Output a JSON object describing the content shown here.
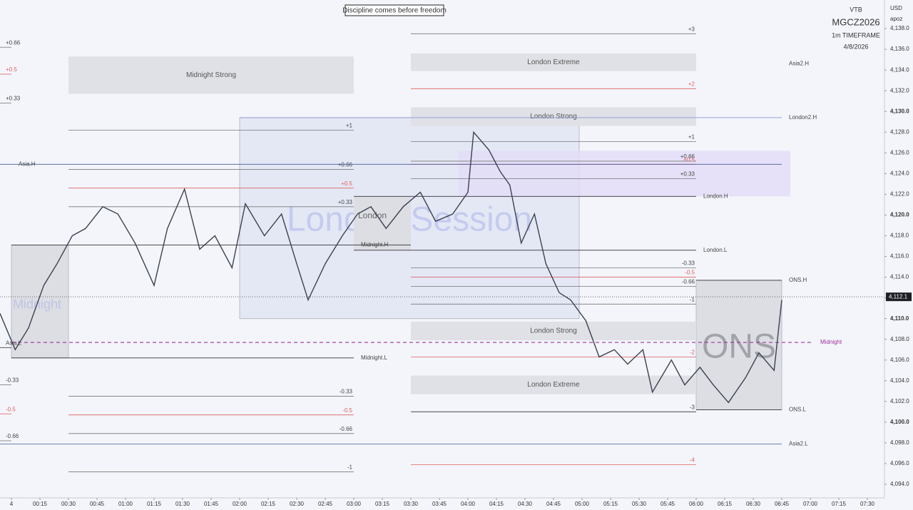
{
  "chart_data": {
    "type": "line",
    "title": "Discipline comes before freedom",
    "broker": "VTB",
    "symbol": "MGCZ2026",
    "timeframe": "1m TIMEFRAME",
    "date": "4/8/2026",
    "currency": "USD",
    "user": "apoz",
    "color": "#3b4150",
    "x": [
      -6,
      2,
      9,
      17,
      24,
      32,
      39,
      48,
      56,
      65,
      75,
      82,
      91,
      99,
      107,
      116,
      123,
      133,
      142,
      150,
      156,
      165,
      174,
      182,
      189,
      197,
      206,
      215,
      223,
      232,
      240,
      243,
      251,
      257,
      262,
      268,
      275,
      281,
      288,
      294,
      302,
      309,
      317,
      324,
      332,
      337,
      347,
      354,
      362,
      369,
      377,
      386,
      393,
      401,
      405
    ],
    "values": [
      4110.5,
      4107.0,
      4109.1,
      4113.2,
      4115.3,
      4118.0,
      4118.7,
      4120.8,
      4120.1,
      4117.3,
      4113.2,
      4118.7,
      4122.5,
      4116.7,
      4118.0,
      4114.9,
      4121.1,
      4118.0,
      4120.1,
      4115.3,
      4111.8,
      4115.3,
      4118.0,
      4120.1,
      4120.8,
      4118.7,
      4120.8,
      4122.2,
      4119.4,
      4120.1,
      4122.2,
      4128.0,
      4126.3,
      4124.2,
      4122.9,
      4117.3,
      4120.1,
      4115.3,
      4112.5,
      4111.8,
      4109.8,
      4106.3,
      4107.0,
      4105.6,
      4107.0,
      4102.9,
      4106.0,
      4103.6,
      4105.3,
      4103.6,
      4101.9,
      4104.3,
      4106.7,
      4105.0,
      4111.8
    ],
    "xlim": [
      -6,
      459
    ],
    "ylim": [
      4092.69,
      4140.76
    ],
    "xticks": [
      {
        "value": 0,
        "label": "4"
      },
      {
        "value": 15,
        "label": "00:15"
      },
      {
        "value": 30,
        "label": "00:30"
      },
      {
        "value": 45,
        "label": "00:45"
      },
      {
        "value": 60,
        "label": "01:00"
      },
      {
        "value": 75,
        "label": "01:15"
      },
      {
        "value": 90,
        "label": "01:30"
      },
      {
        "value": 105,
        "label": "01:45"
      },
      {
        "value": 120,
        "label": "02:00"
      },
      {
        "value": 135,
        "label": "02:15"
      },
      {
        "value": 150,
        "label": "02:30"
      },
      {
        "value": 165,
        "label": "02:45"
      },
      {
        "value": 180,
        "label": "03:00"
      },
      {
        "value": 195,
        "label": "03:15"
      },
      {
        "value": 210,
        "label": "03:30"
      },
      {
        "value": 225,
        "label": "03:45"
      },
      {
        "value": 240,
        "label": "04:00"
      },
      {
        "value": 255,
        "label": "04:15"
      },
      {
        "value": 270,
        "label": "04:30"
      },
      {
        "value": 285,
        "label": "04:45"
      },
      {
        "value": 300,
        "label": "05:00"
      },
      {
        "value": 315,
        "label": "05:15"
      },
      {
        "value": 330,
        "label": "05:30"
      },
      {
        "value": 345,
        "label": "05:45"
      },
      {
        "value": 360,
        "label": "06:00"
      },
      {
        "value": 375,
        "label": "06:15"
      },
      {
        "value": 390,
        "label": "06:30"
      },
      {
        "value": 405,
        "label": "06:45"
      },
      {
        "value": 420,
        "label": "07:00"
      },
      {
        "value": 435,
        "label": "07:15"
      },
      {
        "value": 450,
        "label": "07:30"
      }
    ],
    "yticks": [
      {
        "value": 4094,
        "label": "4,094.0"
      },
      {
        "value": 4096,
        "label": "4,096.0"
      },
      {
        "value": 4098,
        "label": "4,098.0"
      },
      {
        "value": 4100,
        "label": "4,100.0"
      },
      {
        "value": 4102,
        "label": "4,102.0"
      },
      {
        "value": 4104,
        "label": "4,104.0"
      },
      {
        "value": 4106,
        "label": "4,106.0"
      },
      {
        "value": 4108,
        "label": "4,108.0"
      },
      {
        "value": 4110,
        "label": "4,110.0"
      },
      {
        "value": 4112,
        "label": "4,112.0"
      },
      {
        "value": 4114,
        "label": "4,114.0"
      },
      {
        "value": 4116,
        "label": "4,116.0"
      },
      {
        "value": 4118,
        "label": "4,118.0"
      },
      {
        "value": 4120,
        "label": "4,120.0"
      },
      {
        "value": 4122,
        "label": "4,122.0"
      },
      {
        "value": 4124,
        "label": "4,124.0"
      },
      {
        "value": 4126,
        "label": "4,126.0"
      },
      {
        "value": 4128,
        "label": "4,128.0"
      },
      {
        "value": 4130,
        "label": "4,130.0"
      },
      {
        "value": 4132,
        "label": "4,132.0"
      },
      {
        "value": 4134,
        "label": "4,134.0"
      },
      {
        "value": 4136,
        "label": "4,136.0"
      },
      {
        "value": 4138,
        "label": "4,138.0"
      }
    ],
    "current_price": {
      "value": 4112.1,
      "label": "4,112.1"
    },
    "zones": [
      {
        "label": "London Session",
        "y": [
          4110.0,
          4129.4
        ],
        "x": [
          120,
          298.5
        ],
        "fill": "#e4e8f5",
        "style": "watermark"
      },
      {
        "label": "Midnight",
        "y": [
          4106.2,
          4117.1
        ],
        "x": [
          0,
          30
        ],
        "fill": "#dcdee4",
        "style": "watermark"
      },
      {
        "label": "ONS",
        "y": [
          4101.2,
          4113.7
        ],
        "x": [
          360,
          405
        ],
        "fill": "#dcdee4",
        "style": "watermark"
      },
      {
        "label": "London",
        "y": [
          4116.6,
          4121.8
        ],
        "x": [
          180,
          210
        ],
        "fill": "#dcdee4",
        "style": "tag"
      },
      {
        "y": [
          4121.8,
          4126.2
        ],
        "x": [
          235,
          409.5
        ],
        "fill": "#e2dcf7",
        "style": "plain"
      },
      {
        "label": "Midnight Strong",
        "y": [
          4131.7,
          4135.3
        ],
        "x": [
          30,
          180
        ],
        "fill": "#e0e1e6",
        "style": "label"
      },
      {
        "label": "London Extreme",
        "y": [
          4133.9,
          4135.6
        ],
        "x": [
          210,
          360
        ],
        "fill": "#e0e1e6",
        "style": "label"
      },
      {
        "label": "London Strong",
        "y": [
          4128.6,
          4130.4
        ],
        "x": [
          210,
          360
        ],
        "fill": "#e0e1e6",
        "style": "label"
      },
      {
        "label": "London Strong",
        "y": [
          4107.9,
          4109.7
        ],
        "x": [
          210,
          360
        ],
        "fill": "#e0e1e6",
        "style": "label"
      },
      {
        "label": "London Extreme",
        "y": [
          4102.7,
          4104.5
        ],
        "x": [
          210,
          360
        ],
        "fill": "#e0e1e6",
        "style": "label"
      }
    ],
    "levels": [
      {
        "label": "+3",
        "value": 4137.5,
        "x": [
          210,
          360
        ],
        "color": "#777",
        "align": "end"
      },
      {
        "label": "+2",
        "value": 4132.2,
        "x": [
          210,
          360
        ],
        "color": "#e06060",
        "align": "end"
      },
      {
        "label": "+1",
        "value": 4127.1,
        "x": [
          210,
          360
        ],
        "color": "#777",
        "align": "end"
      },
      {
        "label": "+0.66",
        "value": 4125.2,
        "x": [
          210,
          360
        ],
        "color": "#777",
        "align": "end"
      },
      {
        "label": "+0.5",
        "value": 4124.9,
        "x": [
          210,
          360
        ],
        "color": "#e06060",
        "align": "end"
      },
      {
        "label": "+0.33",
        "value": 4123.5,
        "x": [
          210,
          360
        ],
        "color": "#777",
        "align": "end"
      },
      {
        "label": "-0.33",
        "value": 4114.9,
        "x": [
          210,
          360
        ],
        "color": "#777",
        "align": "end"
      },
      {
        "label": "-0.5",
        "value": 4114.0,
        "x": [
          210,
          360
        ],
        "color": "#e06060",
        "align": "end"
      },
      {
        "label": "-0.66",
        "value": 4113.1,
        "x": [
          210,
          360
        ],
        "color": "#777",
        "align": "end"
      },
      {
        "label": "-1",
        "value": 4111.4,
        "x": [
          210,
          360
        ],
        "color": "#777",
        "align": "end"
      },
      {
        "label": "-2",
        "value": 4106.3,
        "x": [
          210,
          360
        ],
        "color": "#e06060",
        "align": "end"
      },
      {
        "label": "-3",
        "value": 4101.0,
        "x": [
          210,
          360
        ],
        "color": "#333",
        "align": "end"
      },
      {
        "label": "-4",
        "value": 4095.9,
        "x": [
          210,
          360
        ],
        "color": "#e06060",
        "align": "end"
      },
      {
        "label": "+1",
        "value": 4128.2,
        "x": [
          30,
          180
        ],
        "color": "#777",
        "align": "end"
      },
      {
        "label": "+0.66",
        "value": 4124.4,
        "x": [
          30,
          180
        ],
        "color": "#777",
        "align": "end"
      },
      {
        "label": "+0.5",
        "value": 4122.6,
        "x": [
          30,
          180
        ],
        "color": "#e06060",
        "align": "end"
      },
      {
        "label": "+0.33",
        "value": 4120.8,
        "x": [
          30,
          180
        ],
        "color": "#777",
        "align": "end"
      },
      {
        "label": "-0.33",
        "value": 4102.5,
        "x": [
          30,
          180
        ],
        "color": "#777",
        "align": "end"
      },
      {
        "label": "-0.5",
        "value": 4100.7,
        "x": [
          30,
          180
        ],
        "color": "#e06060",
        "align": "end"
      },
      {
        "label": "-0.66",
        "value": 4098.9,
        "x": [
          30,
          180
        ],
        "color": "#777",
        "align": "end"
      },
      {
        "label": "-1",
        "value": 4095.2,
        "x": [
          30,
          180
        ],
        "color": "#777",
        "align": "end"
      },
      {
        "label": "+0.66",
        "value": 4136.2,
        "x": [
          -6,
          0
        ],
        "color": "#777",
        "align": "start"
      },
      {
        "label": "+0.5",
        "value": 4133.6,
        "x": [
          -6,
          0
        ],
        "color": "#e06060",
        "align": "start"
      },
      {
        "label": "+0.33",
        "value": 4130.8,
        "x": [
          -6,
          0
        ],
        "color": "#777",
        "align": "start"
      },
      {
        "label": "-0.33",
        "value": 4103.6,
        "x": [
          -6,
          0
        ],
        "color": "#777",
        "align": "start"
      },
      {
        "label": "-0.5",
        "value": 4100.8,
        "x": [
          -6,
          0
        ],
        "color": "#e06060",
        "align": "start"
      },
      {
        "label": "-0.66",
        "value": 4098.2,
        "x": [
          -6,
          0
        ],
        "color": "#777",
        "align": "start"
      },
      {
        "label": "Asia.H",
        "value": 4124.9,
        "x": [
          -6,
          405
        ],
        "color": "#4a5a9a",
        "align": "start"
      },
      {
        "label": "Asia.L",
        "value": 4107.2,
        "x": [
          -6,
          0
        ],
        "color": "#333",
        "align": "start"
      },
      {
        "label": "Asia2.H",
        "value": 4134.6,
        "x": [
          405,
          405
        ],
        "color": "#333",
        "align": "after"
      },
      {
        "label": "Asia2.L",
        "value": 4097.9,
        "x": [
          -6,
          405
        ],
        "color": "#4a5a9a",
        "align": "after"
      },
      {
        "label": "London2.H",
        "value": 4129.4,
        "x": [
          120,
          405
        ],
        "color": "#8a95d8",
        "align": "after"
      },
      {
        "label": "London.H",
        "value": 4121.8,
        "x": [
          180,
          360
        ],
        "color": "#333",
        "align": "after"
      },
      {
        "label": "London.L",
        "value": 4116.6,
        "x": [
          180,
          360
        ],
        "color": "#333",
        "align": "after"
      },
      {
        "label": "Midnight.H",
        "value": 4117.1,
        "x": [
          0,
          210
        ],
        "color": "#333",
        "align": "inside"
      },
      {
        "label": "Midnight.L",
        "value": 4106.2,
        "x": [
          0,
          180
        ],
        "color": "#333",
        "align": "after"
      },
      {
        "label": "ONS.H",
        "value": 4113.7,
        "x": [
          360,
          405
        ],
        "color": "#333",
        "align": "after"
      },
      {
        "label": "ONS.L",
        "value": 4101.2,
        "x": [
          360,
          405
        ],
        "color": "#333",
        "align": "after"
      },
      {
        "label": "Midnight",
        "value": 4107.7,
        "x": [
          0,
          421.5
        ],
        "color": "#a0309a",
        "align": "after",
        "dash": true
      }
    ]
  }
}
